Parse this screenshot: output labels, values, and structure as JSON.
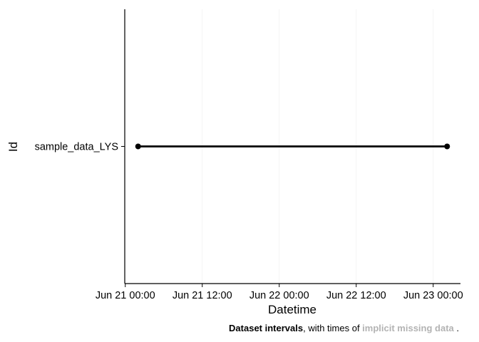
{
  "chart_data": {
    "type": "line",
    "title": "",
    "xlabel": "Datetime",
    "ylabel": "Id",
    "categories": [
      "sample_data_LYS"
    ],
    "x_ticks": [
      "Jun 21 00:00",
      "Jun 21 12:00",
      "Jun 22 00:00",
      "Jun 22 12:00",
      "Jun 23 00:00"
    ],
    "xlim": [
      "2023-06-20T23:55",
      "2023-06-23T04:15"
    ],
    "grid": true,
    "legend": "none",
    "series": [
      {
        "category": "sample_data_LYS",
        "start": "2023-06-21T02:00",
        "end": "2023-06-23T02:10",
        "color": "#000000"
      }
    ],
    "caption": {
      "bold": "Dataset intervals",
      "middle": ", with times of ",
      "highlight": "implicit missing data",
      "highlight_color": "#b3b3b3",
      "end": " ."
    }
  }
}
